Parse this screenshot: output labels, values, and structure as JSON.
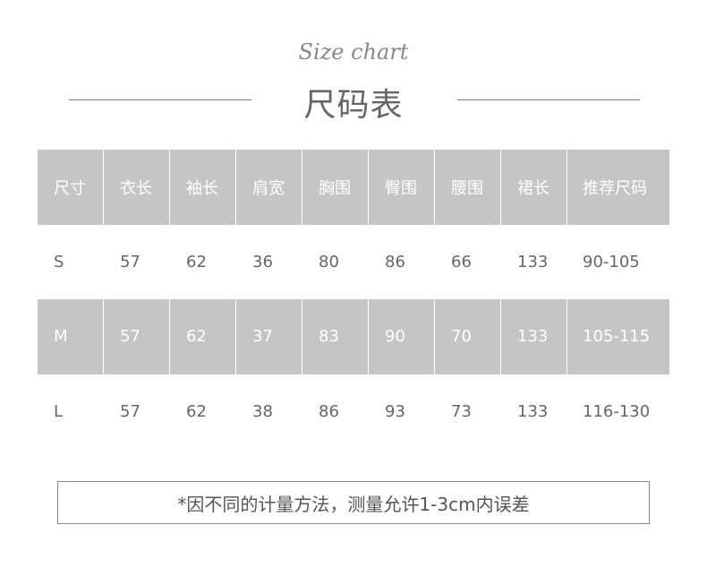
{
  "header": {
    "script_title": "Size chart",
    "title": "尺码表"
  },
  "table": {
    "columns": [
      "尺寸",
      "衣长",
      "袖长",
      "肩宽",
      "胸围",
      "臀围",
      "腰围",
      "裙长",
      "推荐尺码"
    ],
    "rows": [
      [
        "S",
        "57",
        "62",
        "36",
        "80",
        "86",
        "66",
        "133",
        "90-105"
      ],
      [
        "M",
        "57",
        "62",
        "37",
        "83",
        "90",
        "70",
        "133",
        "105-115"
      ],
      [
        "L",
        "57",
        "62",
        "38",
        "86",
        "93",
        "73",
        "133",
        "116-130"
      ]
    ]
  },
  "note": "*因不同的计量方法，测量允许1-3cm内误差",
  "colors": {
    "header_bg": "#c5c5c5",
    "text": "#666666"
  }
}
